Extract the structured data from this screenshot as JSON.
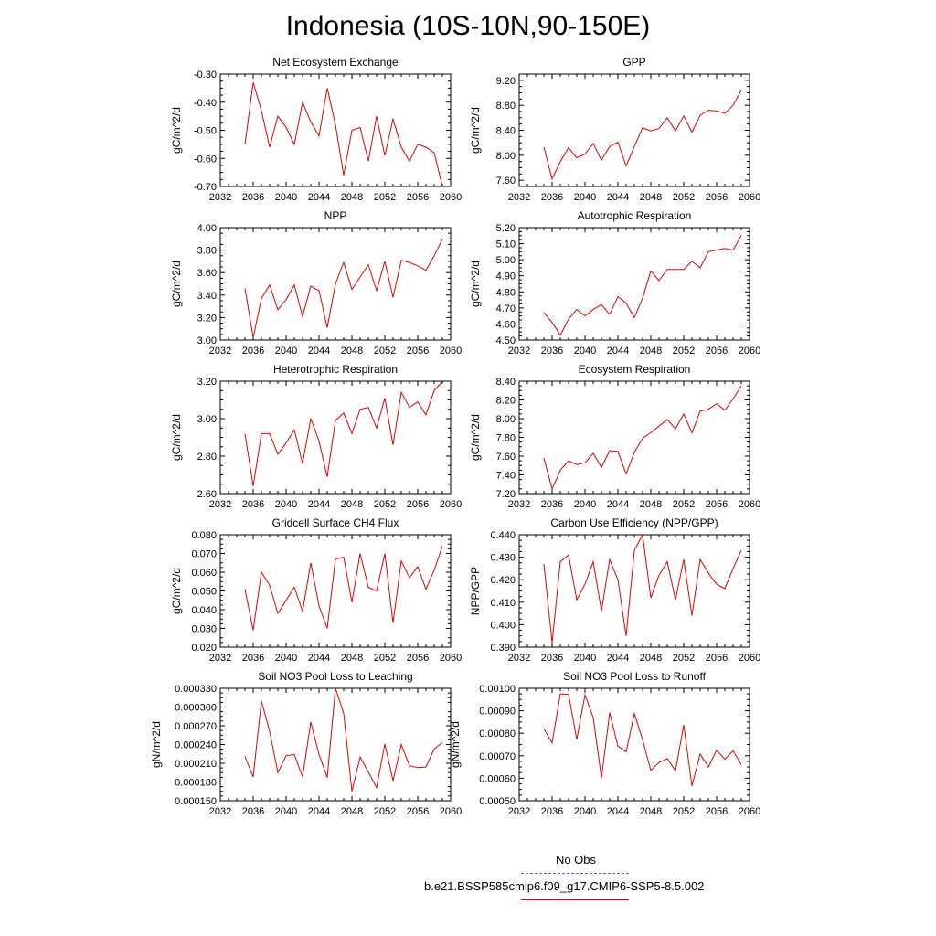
{
  "page_title": "Indonesia (10S-10N,90-150E)",
  "legend": {
    "obs_label": "No Obs",
    "obs_color": "#4a6fd6",
    "model_label": "b.e21.BSSP585cmip6.f09_g17.CMIP6-SSP5-8.5.002",
    "model_color": "#e00000"
  },
  "chart_data": [
    {
      "type": "line",
      "title": "Net Ecosystem Exchange",
      "ylabel": "gC/m^2/d",
      "xlim": [
        2032,
        2060
      ],
      "xticks": [
        "2032",
        "2036",
        "2040",
        "2044",
        "2048",
        "2052",
        "2056",
        "2060"
      ],
      "ylim": [
        -0.7,
        -0.3
      ],
      "yticks": [
        "-0.70",
        "-0.60",
        "-0.50",
        "-0.40",
        "-0.30"
      ],
      "series": [
        {
          "x": [
            2035,
            2036,
            2037,
            2038,
            2039,
            2040,
            2041,
            2042,
            2043,
            2044,
            2045,
            2046,
            2047,
            2048,
            2049,
            2050,
            2051,
            2052,
            2053,
            2054,
            2055,
            2056,
            2057,
            2058,
            2059
          ],
          "values": [
            -0.55,
            -0.33,
            -0.43,
            -0.56,
            -0.45,
            -0.49,
            -0.55,
            -0.4,
            -0.47,
            -0.52,
            -0.35,
            -0.48,
            -0.66,
            -0.5,
            -0.49,
            -0.61,
            -0.45,
            -0.59,
            -0.46,
            -0.56,
            -0.61,
            -0.55,
            -0.56,
            -0.58,
            -0.7
          ]
        }
      ]
    },
    {
      "type": "line",
      "title": "GPP",
      "ylabel": "gC/m^2/d",
      "xlim": [
        2032,
        2060
      ],
      "xticks": [
        "2032",
        "2036",
        "2040",
        "2044",
        "2048",
        "2052",
        "2056",
        "2060"
      ],
      "ylim": [
        7.5,
        9.3
      ],
      "yticks": [
        "7.60",
        "8.00",
        "8.40",
        "8.80",
        "9.20"
      ],
      "series": [
        {
          "x": [
            2035,
            2036,
            2037,
            2038,
            2039,
            2040,
            2041,
            2042,
            2043,
            2044,
            2045,
            2046,
            2047,
            2048,
            2049,
            2050,
            2051,
            2052,
            2053,
            2054,
            2055,
            2056,
            2057,
            2058,
            2059
          ],
          "values": [
            8.13,
            7.62,
            7.9,
            8.12,
            7.96,
            8.02,
            8.19,
            7.92,
            8.14,
            8.21,
            7.83,
            8.14,
            8.44,
            8.39,
            8.43,
            8.6,
            8.39,
            8.63,
            8.37,
            8.64,
            8.72,
            8.71,
            8.67,
            8.8,
            9.04
          ]
        }
      ]
    },
    {
      "type": "line",
      "title": "NPP",
      "ylabel": "gC/m^2/d",
      "xlim": [
        2032,
        2060
      ],
      "xticks": [
        "2032",
        "2036",
        "2040",
        "2044",
        "2048",
        "2052",
        "2056",
        "2060"
      ],
      "ylim": [
        3.0,
        4.0
      ],
      "yticks": [
        "3.00",
        "3.20",
        "3.40",
        "3.60",
        "3.80",
        "4.00"
      ],
      "series": [
        {
          "x": [
            2035,
            2036,
            2037,
            2038,
            2039,
            2040,
            2041,
            2042,
            2043,
            2044,
            2045,
            2046,
            2047,
            2048,
            2049,
            2050,
            2051,
            2052,
            2053,
            2054,
            2055,
            2056,
            2057,
            2058,
            2059
          ],
          "values": [
            3.46,
            3.02,
            3.37,
            3.49,
            3.27,
            3.36,
            3.49,
            3.21,
            3.48,
            3.44,
            3.11,
            3.5,
            3.69,
            3.45,
            3.56,
            3.67,
            3.44,
            3.7,
            3.38,
            3.71,
            3.69,
            3.66,
            3.62,
            3.75,
            3.9
          ]
        }
      ]
    },
    {
      "type": "line",
      "title": "Autotrophic Respiration",
      "ylabel": "gC/m^2/d",
      "xlim": [
        2032,
        2060
      ],
      "xticks": [
        "2032",
        "2036",
        "2040",
        "2044",
        "2048",
        "2052",
        "2056",
        "2060"
      ],
      "ylim": [
        4.5,
        5.2
      ],
      "yticks": [
        "4.50",
        "4.60",
        "4.70",
        "4.80",
        "4.90",
        "5.00",
        "5.10",
        "5.20"
      ],
      "series": [
        {
          "x": [
            2035,
            2036,
            2037,
            2038,
            2039,
            2040,
            2041,
            2042,
            2043,
            2044,
            2045,
            2046,
            2047,
            2048,
            2049,
            2050,
            2051,
            2052,
            2053,
            2054,
            2055,
            2056,
            2057,
            2058,
            2059
          ],
          "values": [
            4.67,
            4.61,
            4.53,
            4.63,
            4.69,
            4.65,
            4.69,
            4.72,
            4.66,
            4.77,
            4.73,
            4.64,
            4.76,
            4.93,
            4.87,
            4.94,
            4.94,
            4.94,
            4.99,
            4.95,
            5.05,
            5.06,
            5.07,
            5.06,
            5.15
          ]
        }
      ]
    },
    {
      "type": "line",
      "title": "Heterotrophic Respiration",
      "ylabel": "gC/m^2/d",
      "xlim": [
        2032,
        2060
      ],
      "xticks": [
        "2032",
        "2036",
        "2040",
        "2044",
        "2048",
        "2052",
        "2056",
        "2060"
      ],
      "ylim": [
        2.6,
        3.2
      ],
      "yticks": [
        "2.60",
        "2.80",
        "3.00",
        "3.20"
      ],
      "series": [
        {
          "x": [
            2035,
            2036,
            2037,
            2038,
            2039,
            2040,
            2041,
            2042,
            2043,
            2044,
            2045,
            2046,
            2047,
            2048,
            2049,
            2050,
            2051,
            2052,
            2053,
            2054,
            2055,
            2056,
            2057,
            2058,
            2059
          ],
          "values": [
            2.92,
            2.64,
            2.92,
            2.92,
            2.81,
            2.87,
            2.94,
            2.76,
            3.0,
            2.88,
            2.69,
            2.99,
            3.03,
            2.92,
            3.05,
            3.06,
            2.95,
            3.11,
            2.86,
            3.14,
            3.06,
            3.09,
            3.02,
            3.15,
            3.2
          ]
        }
      ]
    },
    {
      "type": "line",
      "title": "Ecosystem Respiration",
      "ylabel": "gC/m^2/d",
      "xlim": [
        2032,
        2060
      ],
      "xticks": [
        "2032",
        "2036",
        "2040",
        "2044",
        "2048",
        "2052",
        "2056",
        "2060"
      ],
      "ylim": [
        7.2,
        8.4
      ],
      "yticks": [
        "7.20",
        "7.40",
        "7.60",
        "7.80",
        "8.00",
        "8.20",
        "8.40"
      ],
      "series": [
        {
          "x": [
            2035,
            2036,
            2037,
            2038,
            2039,
            2040,
            2041,
            2042,
            2043,
            2044,
            2045,
            2046,
            2047,
            2048,
            2049,
            2050,
            2051,
            2052,
            2053,
            2054,
            2055,
            2056,
            2057,
            2058,
            2059
          ],
          "values": [
            7.58,
            7.25,
            7.45,
            7.55,
            7.51,
            7.53,
            7.63,
            7.48,
            7.66,
            7.65,
            7.41,
            7.64,
            7.79,
            7.85,
            7.92,
            7.99,
            7.89,
            8.05,
            7.85,
            8.08,
            8.1,
            8.16,
            8.09,
            8.21,
            8.35
          ]
        }
      ]
    },
    {
      "type": "line",
      "title": "Gridcell Surface CH4 Flux",
      "ylabel": "gC/m^2/d",
      "xlim": [
        2032,
        2060
      ],
      "xticks": [
        "2032",
        "2036",
        "2040",
        "2044",
        "2048",
        "2052",
        "2056",
        "2060"
      ],
      "ylim": [
        0.02,
        0.08
      ],
      "yticks": [
        "0.020",
        "0.030",
        "0.040",
        "0.050",
        "0.060",
        "0.070",
        "0.080"
      ],
      "series": [
        {
          "x": [
            2035,
            2036,
            2037,
            2038,
            2039,
            2040,
            2041,
            2042,
            2043,
            2044,
            2045,
            2046,
            2047,
            2048,
            2049,
            2050,
            2051,
            2052,
            2053,
            2054,
            2055,
            2056,
            2057,
            2058,
            2059
          ],
          "values": [
            0.051,
            0.029,
            0.06,
            0.053,
            0.038,
            0.045,
            0.052,
            0.039,
            0.065,
            0.042,
            0.03,
            0.067,
            0.068,
            0.044,
            0.07,
            0.052,
            0.05,
            0.07,
            0.033,
            0.066,
            0.057,
            0.063,
            0.051,
            0.061,
            0.074
          ]
        }
      ]
    },
    {
      "type": "line",
      "title": "Carbon Use Efficiency (NPP/GPP)",
      "ylabel": "NPP/GPP",
      "xlim": [
        2032,
        2060
      ],
      "xticks": [
        "2032",
        "2036",
        "2040",
        "2044",
        "2048",
        "2052",
        "2056",
        "2060"
      ],
      "ylim": [
        0.39,
        0.44
      ],
      "yticks": [
        "0.390",
        "0.400",
        "0.410",
        "0.420",
        "0.430",
        "0.440"
      ],
      "series": [
        {
          "x": [
            2035,
            2036,
            2037,
            2038,
            2039,
            2040,
            2041,
            2042,
            2043,
            2044,
            2045,
            2046,
            2047,
            2048,
            2049,
            2050,
            2051,
            2052,
            2053,
            2054,
            2055,
            2056,
            2057,
            2058,
            2059
          ],
          "values": [
            0.427,
            0.392,
            0.428,
            0.431,
            0.411,
            0.418,
            0.428,
            0.406,
            0.429,
            0.42,
            0.395,
            0.433,
            0.44,
            0.412,
            0.422,
            0.428,
            0.411,
            0.429,
            0.404,
            0.429,
            0.423,
            0.418,
            0.416,
            0.425,
            0.433
          ]
        }
      ]
    },
    {
      "type": "line",
      "title": "Soil NO3 Pool Loss to Leaching",
      "ylabel": "gN/m^2/d",
      "xlim": [
        2032,
        2060
      ],
      "xticks": [
        "2032",
        "2036",
        "2040",
        "2044",
        "2048",
        "2052",
        "2056",
        "2060"
      ],
      "ylim": [
        0.00015,
        0.00033
      ],
      "yticks": [
        "0.000150",
        "0.000180",
        "0.000210",
        "0.000240",
        "0.000270",
        "0.000300",
        "0.000330"
      ],
      "series": [
        {
          "x": [
            2035,
            2036,
            2037,
            2038,
            2039,
            2040,
            2041,
            2042,
            2043,
            2044,
            2045,
            2046,
            2047,
            2048,
            2049,
            2050,
            2051,
            2052,
            2053,
            2054,
            2055,
            2056,
            2057,
            2058,
            2059
          ],
          "values": [
            0.000221,
            0.000188,
            0.00031,
            0.000261,
            0.000195,
            0.000222,
            0.000224,
            0.000188,
            0.000276,
            0.000224,
            0.000187,
            0.00033,
            0.00029,
            0.000165,
            0.00022,
            0.000196,
            0.000171,
            0.000241,
            0.000182,
            0.00024,
            0.000206,
            0.000203,
            0.000204,
            0.000233,
            0.000243
          ]
        }
      ]
    },
    {
      "type": "line",
      "title": "Soil NO3 Pool Loss to Runoff",
      "ylabel": "gN/m^2/d",
      "xlim": [
        2032,
        2060
      ],
      "xticks": [
        "2032",
        "2036",
        "2040",
        "2044",
        "2048",
        "2052",
        "2056",
        "2060"
      ],
      "ylim": [
        0.0005,
        0.001
      ],
      "yticks": [
        "0.00050",
        "0.00060",
        "0.00070",
        "0.00080",
        "0.00090",
        "0.00100"
      ],
      "series": [
        {
          "x": [
            2035,
            2036,
            2037,
            2038,
            2039,
            2040,
            2041,
            2042,
            2043,
            2044,
            2045,
            2046,
            2047,
            2048,
            2049,
            2050,
            2051,
            2052,
            2053,
            2054,
            2055,
            2056,
            2057,
            2058,
            2059
          ],
          "values": [
            0.00082,
            0.000757,
            0.000975,
            0.000973,
            0.000773,
            0.000971,
            0.00087,
            0.000601,
            0.000892,
            0.000743,
            0.000717,
            0.000888,
            0.000771,
            0.000635,
            0.00067,
            0.000688,
            0.000633,
            0.000837,
            0.000566,
            0.000708,
            0.00065,
            0.000725,
            0.000685,
            0.000722,
            0.000661
          ]
        }
      ]
    }
  ]
}
